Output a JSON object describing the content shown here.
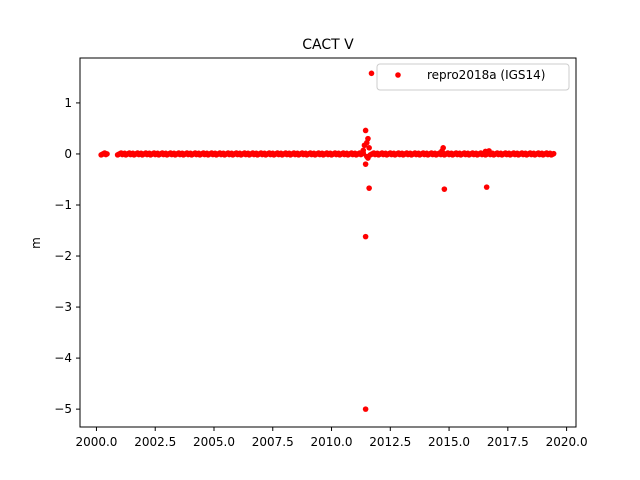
{
  "chart_data": {
    "type": "scatter",
    "title": "CACT V",
    "xlabel": "",
    "ylabel": "m",
    "xlim": [
      1999.3,
      2020.4
    ],
    "ylim": [
      -5.35,
      1.88
    ],
    "xticks": [
      2000.0,
      2002.5,
      2005.0,
      2007.5,
      2010.0,
      2012.5,
      2015.0,
      2017.5,
      2020.0
    ],
    "xtick_labels": [
      "2000.0",
      "2002.5",
      "2005.0",
      "2007.5",
      "2010.0",
      "2012.5",
      "2015.0",
      "2017.5",
      "2020.0"
    ],
    "yticks": [
      1,
      0,
      -1,
      -2,
      -3,
      -4,
      -5
    ],
    "ytick_labels": [
      "1",
      "0",
      "−1",
      "−2",
      "−3",
      "−4",
      "−5"
    ],
    "grid": false,
    "legend_position": "top-right",
    "series": [
      {
        "name": "repro2018a (IGS14)",
        "color": "#ff0000",
        "marker": "circle",
        "dense_segments": [
          {
            "x_start": 2000.2,
            "x_end": 2000.45,
            "y": 0.0
          },
          {
            "x_start": 2000.9,
            "x_end": 2011.35,
            "y": 0.0
          },
          {
            "x_start": 2011.65,
            "x_end": 2019.45,
            "y": 0.0
          }
        ],
        "points": [
          {
            "x": 2011.7,
            "y": 1.58
          },
          {
            "x": 2011.45,
            "y": 0.46
          },
          {
            "x": 2011.55,
            "y": 0.3
          },
          {
            "x": 2011.5,
            "y": 0.22
          },
          {
            "x": 2011.4,
            "y": 0.17
          },
          {
            "x": 2011.6,
            "y": 0.12
          },
          {
            "x": 2011.35,
            "y": 0.07
          },
          {
            "x": 2011.5,
            "y": -0.05
          },
          {
            "x": 2011.55,
            "y": -0.08
          },
          {
            "x": 2011.45,
            "y": -0.2
          },
          {
            "x": 2011.6,
            "y": -0.67
          },
          {
            "x": 2011.45,
            "y": -1.62
          },
          {
            "x": 2011.45,
            "y": -5.0
          },
          {
            "x": 2014.75,
            "y": 0.12
          },
          {
            "x": 2014.7,
            "y": 0.06
          },
          {
            "x": 2014.8,
            "y": -0.69
          },
          {
            "x": 2016.55,
            "y": 0.05
          },
          {
            "x": 2016.7,
            "y": 0.06
          },
          {
            "x": 2016.6,
            "y": -0.65
          }
        ]
      }
    ]
  }
}
